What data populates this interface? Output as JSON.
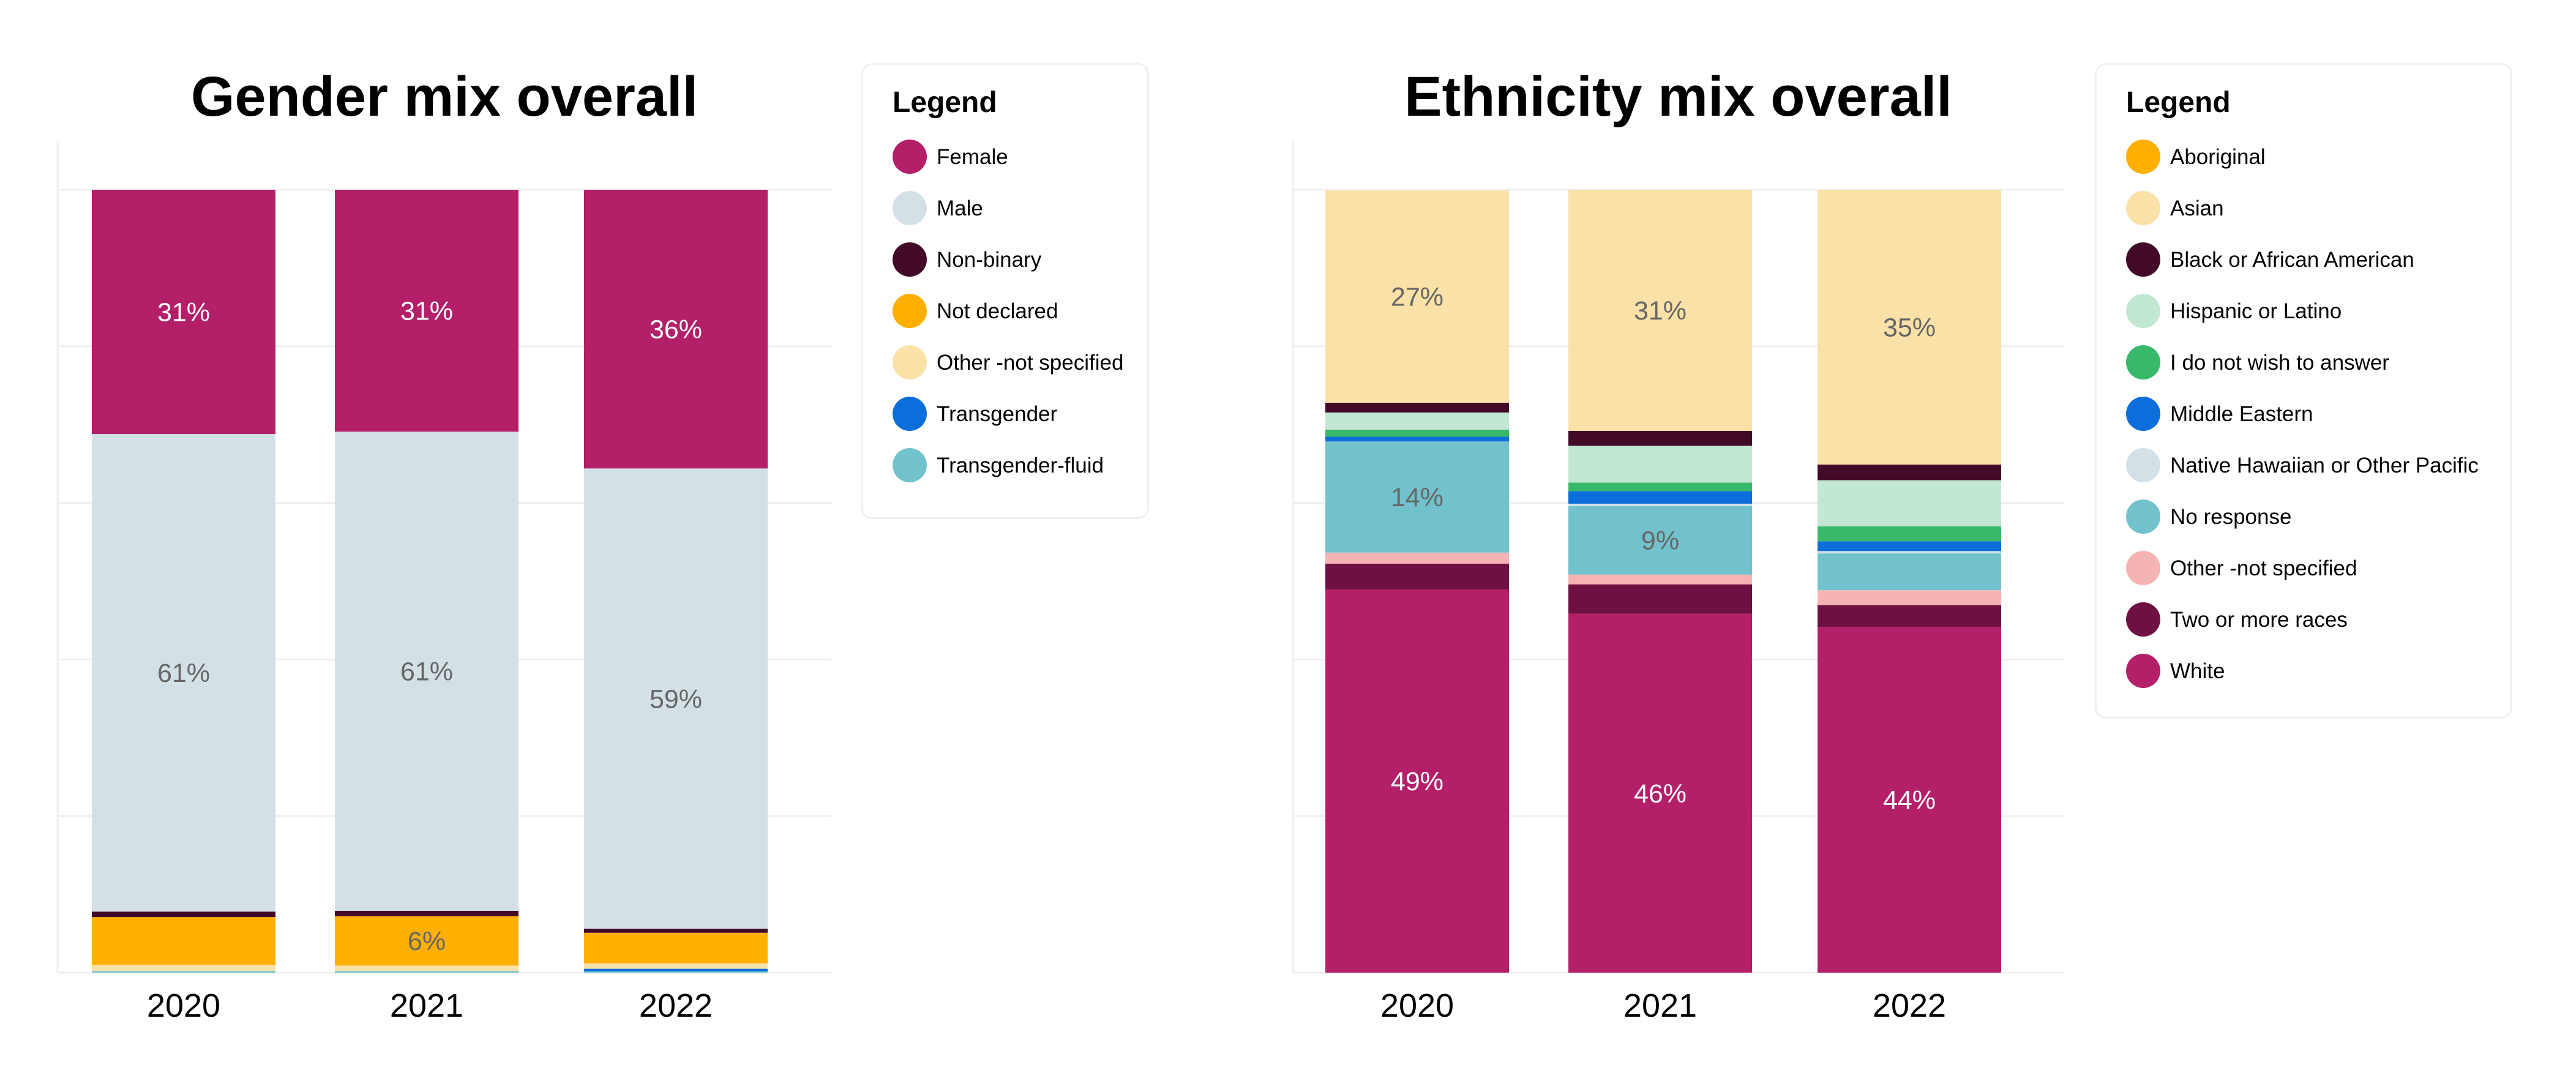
{
  "charts": [
    {
      "id": "gender",
      "title": "Gender mix overall",
      "legend_title": "Legend",
      "legend": [
        {
          "name": "Female",
          "color": "#B41F6A"
        },
        {
          "name": "Male",
          "color": "#D3E1E6"
        },
        {
          "name": "Non-binary",
          "color": "#420A27"
        },
        {
          "name": "Not declared",
          "color": "#FFAF00"
        },
        {
          "name": "Other -not specified",
          "color": "#FAE1A8"
        },
        {
          "name": "Transgender",
          "color": "#0B6EDA"
        },
        {
          "name": "Transgender-fluid",
          "color": "#72C2CD"
        }
      ]
    },
    {
      "id": "ethnicity",
      "title": "Ethnicity mix overall",
      "legend_title": "Legend",
      "legend": [
        {
          "name": "Aboriginal",
          "color": "#FFAF00"
        },
        {
          "name": "Asian",
          "color": "#FAE1A8"
        },
        {
          "name": "Black or African American",
          "color": "#420A27"
        },
        {
          "name": "Hispanic or Latino",
          "color": "#C2E8D4"
        },
        {
          "name": "I do not wish to answer",
          "color": "#38B86A"
        },
        {
          "name": "Middle Eastern",
          "color": "#0B6EDA"
        },
        {
          "name": "Native Hawaiian or Other Pacific",
          "color": "#D3E1E6"
        },
        {
          "name": "No response",
          "color": "#72C2CD"
        },
        {
          "name": "Other -not specified",
          "color": "#F6B3B3"
        },
        {
          "name": "Two or more races",
          "color": "#6E1142"
        },
        {
          "name": "White",
          "color": "#B41F6A"
        }
      ]
    }
  ],
  "chart_data": [
    {
      "type": "bar",
      "stacked": true,
      "title": "Gender mix overall",
      "xlabel": "",
      "ylabel": "",
      "ylim": [
        0,
        100
      ],
      "unit": "%",
      "grid": true,
      "legend_position": "right",
      "categories": [
        "2020",
        "2021",
        "2022"
      ],
      "stack_order_bottom_to_top": [
        "Transgender-fluid",
        "Transgender",
        "Other -not specified",
        "Not declared",
        "Non-binary",
        "Male",
        "Female"
      ],
      "series": [
        {
          "name": "Female",
          "color": "#B41F6A",
          "values": [
            31.2,
            30.9,
            35.6
          ],
          "labels": [
            "31%",
            "31%",
            "36%"
          ],
          "label_color": "#ffffff"
        },
        {
          "name": "Male",
          "color": "#D3E1E6",
          "values": [
            61.0,
            61.2,
            58.8
          ],
          "labels": [
            "61%",
            "61%",
            "59%"
          ],
          "label_color": "#666666"
        },
        {
          "name": "Non-binary",
          "color": "#420A27",
          "values": [
            0.7,
            0.7,
            0.5
          ],
          "labels": [
            "",
            "",
            ""
          ],
          "label_color": "#ffffff"
        },
        {
          "name": "Not declared",
          "color": "#FFAF00",
          "values": [
            6.1,
            6.3,
            3.9
          ],
          "labels": [
            "",
            "6%",
            ""
          ],
          "label_color": "#666666"
        },
        {
          "name": "Other -not specified",
          "color": "#FAE1A8",
          "values": [
            0.8,
            0.7,
            0.7
          ],
          "labels": [
            "",
            "",
            ""
          ],
          "label_color": "#666666"
        },
        {
          "name": "Transgender",
          "color": "#0B6EDA",
          "values": [
            0.0,
            0.0,
            0.35
          ],
          "labels": [
            "",
            "",
            ""
          ],
          "label_color": "#ffffff"
        },
        {
          "name": "Transgender-fluid",
          "color": "#72C2CD",
          "values": [
            0.2,
            0.2,
            0.15
          ],
          "labels": [
            "",
            "",
            ""
          ],
          "label_color": "#666666"
        }
      ]
    },
    {
      "type": "bar",
      "stacked": true,
      "title": "Ethnicity mix overall",
      "xlabel": "",
      "ylabel": "",
      "ylim": [
        0,
        100
      ],
      "unit": "%",
      "grid": true,
      "legend_position": "right",
      "categories": [
        "2020",
        "2021",
        "2022"
      ],
      "stack_order_bottom_to_top": [
        "White",
        "Two or more races",
        "Other -not specified",
        "No response",
        "Native Hawaiian or Other Pacific",
        "Middle Eastern",
        "I do not wish to answer",
        "Hispanic or Latino",
        "Black or African American",
        "Asian",
        "Aboriginal"
      ],
      "series": [
        {
          "name": "Aboriginal",
          "color": "#FFAF00",
          "values": [
            0.0,
            0.0,
            0.0
          ],
          "labels": [
            "",
            "",
            ""
          ],
          "label_color": "#666666"
        },
        {
          "name": "Asian",
          "color": "#FAE1A8",
          "values": [
            27.1,
            30.8,
            35.1
          ],
          "labels": [
            "27%",
            "31%",
            "35%"
          ],
          "label_color": "#666666"
        },
        {
          "name": "Black or African American",
          "color": "#420A27",
          "values": [
            1.25,
            1.9,
            2.0
          ],
          "labels": [
            "",
            "",
            ""
          ],
          "label_color": "#ffffff"
        },
        {
          "name": "Hispanic or Latino",
          "color": "#C2E8D4",
          "values": [
            2.2,
            4.7,
            5.9
          ],
          "labels": [
            "",
            "",
            ""
          ],
          "label_color": "#666666"
        },
        {
          "name": "I do not wish to answer",
          "color": "#38B86A",
          "values": [
            0.9,
            1.1,
            1.9
          ],
          "labels": [
            "",
            "",
            ""
          ],
          "label_color": "#ffffff"
        },
        {
          "name": "Middle Eastern",
          "color": "#0B6EDA",
          "values": [
            0.6,
            1.6,
            1.25
          ],
          "labels": [
            "",
            "",
            ""
          ],
          "label_color": "#ffffff"
        },
        {
          "name": "Native Hawaiian or Other Pacific",
          "color": "#D3E1E6",
          "values": [
            0.0,
            0.3,
            0.3
          ],
          "labels": [
            "",
            "",
            ""
          ],
          "label_color": "#666666"
        },
        {
          "name": "No response",
          "color": "#72C2CD",
          "values": [
            14.2,
            8.75,
            4.7
          ],
          "labels": [
            "14%",
            "9%",
            ""
          ],
          "label_color": "#666666"
        },
        {
          "name": "Other -not specified",
          "color": "#F6B3B3",
          "values": [
            1.4,
            1.25,
            1.9
          ],
          "labels": [
            "",
            "",
            ""
          ],
          "label_color": "#666666"
        },
        {
          "name": "Two or more races",
          "color": "#6E1142",
          "values": [
            3.3,
            3.75,
            2.8
          ],
          "labels": [
            "",
            "",
            ""
          ],
          "label_color": "#ffffff"
        },
        {
          "name": "White",
          "color": "#B41F6A",
          "values": [
            48.95,
            45.85,
            44.15
          ],
          "labels": [
            "49%",
            "46%",
            "44%"
          ],
          "label_color": "#ffffff"
        }
      ]
    }
  ]
}
